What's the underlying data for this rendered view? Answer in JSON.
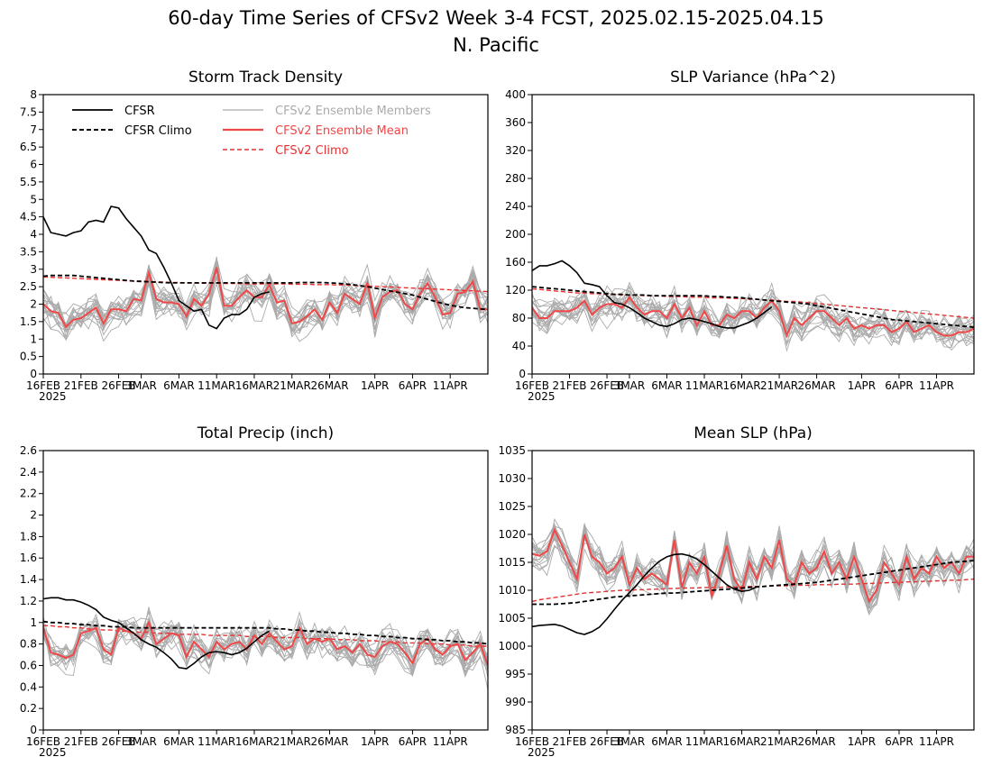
{
  "title": "60-day Time Series of CFSv2 Week 3-4 FCST, 2025.02.15-2025.04.15",
  "subtitle": "N. Pacific",
  "colors": {
    "cfsr": "#000000",
    "members": "#aaaaaa",
    "ens_mean": "#f04848",
    "cfsv2_climo": "#e83030"
  },
  "legend": {
    "cfsr": "CFSR",
    "cfsr_climo": "CFSR Climo",
    "members": "CFSv2 Ensemble Members",
    "ens_mean": "CFSv2 Ensemble Mean",
    "cfsv2_climo": "CFSv2 Climo"
  },
  "x_axis": {
    "ticks": [
      {
        "day": 0,
        "label": "16FEB"
      },
      {
        "day": 5,
        "label": "21FEB"
      },
      {
        "day": 10,
        "label": "26FEB"
      },
      {
        "day": 13,
        "label": "3MAR"
      },
      {
        "day": 18,
        "label": "6MAR"
      },
      {
        "day": 23,
        "label": "11MAR"
      },
      {
        "day": 28,
        "label": "16MAR"
      },
      {
        "day": 33,
        "label": "21MAR"
      },
      {
        "day": 38,
        "label": "26MAR"
      },
      {
        "day": 44,
        "label": "1APR"
      },
      {
        "day": 49,
        "label": "6APR"
      },
      {
        "day": 54,
        "label": "11APR"
      }
    ],
    "year_label": "2025"
  },
  "chart_data": [
    {
      "type": "line",
      "title": "Storm Track Density",
      "ylim": [
        0,
        8
      ],
      "yticks": [
        "0",
        "0.5",
        "1",
        "1.5",
        "2",
        "2.5",
        "3",
        "3.5",
        "4",
        "4.5",
        "5",
        "5.5",
        "6",
        "6.5",
        "7",
        "7.5",
        "8"
      ],
      "legend": true,
      "series": [
        {
          "name": "CFSR",
          "role": "cfsr",
          "values": [
            4.5,
            4.05,
            4.0,
            3.95,
            4.05,
            4.1,
            4.35,
            4.4,
            4.35,
            4.8,
            4.75,
            4.45,
            4.2,
            3.95,
            3.55,
            3.45,
            3.05,
            2.6,
            2.1,
            1.95,
            1.8,
            1.85,
            1.4,
            1.3,
            1.6,
            1.7,
            1.7,
            1.85,
            2.2,
            2.3,
            2.35
          ]
        },
        {
          "name": "CFSR Climo",
          "role": "cfsr_climo",
          "values": [
            2.8,
            2.82,
            2.82,
            2.82,
            2.82,
            2.8,
            2.78,
            2.76,
            2.74,
            2.72,
            2.7,
            2.68,
            2.66,
            2.65,
            2.64,
            2.63,
            2.62,
            2.61,
            2.61,
            2.61,
            2.61,
            2.61,
            2.61,
            2.61,
            2.61,
            2.61,
            2.61,
            2.61,
            2.61,
            2.61,
            2.61,
            2.61,
            2.61,
            2.61,
            2.62,
            2.62,
            2.62,
            2.62,
            2.61,
            2.6,
            2.58,
            2.56,
            2.53,
            2.5,
            2.46,
            2.42,
            2.38,
            2.34,
            2.3,
            2.26,
            2.2,
            2.14,
            2.08,
            2.02,
            1.97,
            1.93,
            1.9,
            1.88,
            1.86,
            1.85
          ]
        },
        {
          "name": "CFSv2 Ensemble Mean",
          "role": "ens_mean",
          "values": [
            2.0,
            1.8,
            1.75,
            1.35,
            1.55,
            1.6,
            1.75,
            1.9,
            1.45,
            1.85,
            1.85,
            1.8,
            2.15,
            2.1,
            2.9,
            2.15,
            2.05,
            2.05,
            2.0,
            1.65,
            2.15,
            1.95,
            2.3,
            3.05,
            1.95,
            1.95,
            2.2,
            2.4,
            2.2,
            2.2,
            2.55,
            2.05,
            2.1,
            1.45,
            1.5,
            1.65,
            1.85,
            1.55,
            2.05,
            1.75,
            2.3,
            2.15,
            2.0,
            2.6,
            1.6,
            2.2,
            2.35,
            2.4,
            2.0,
            1.85,
            2.3,
            2.6,
            2.2,
            1.7,
            1.75,
            2.3,
            2.35,
            2.65,
            1.85,
            1.85
          ]
        },
        {
          "name": "CFSv2 Climo",
          "role": "cfsv2_climo",
          "values": [
            2.78,
            2.77,
            2.76,
            2.75,
            2.74,
            2.73,
            2.72,
            2.71,
            2.7,
            2.69,
            2.68,
            2.67,
            2.66,
            2.66,
            2.65,
            2.64,
            2.63,
            2.62,
            2.62,
            2.61,
            2.61,
            2.6,
            2.6,
            2.6,
            2.59,
            2.59,
            2.59,
            2.58,
            2.58,
            2.58,
            2.58,
            2.58,
            2.58,
            2.57,
            2.57,
            2.57,
            2.56,
            2.56,
            2.56,
            2.55,
            2.55,
            2.54,
            2.53,
            2.52,
            2.51,
            2.5,
            2.49,
            2.48,
            2.47,
            2.46,
            2.45,
            2.44,
            2.43,
            2.42,
            2.41,
            2.4,
            2.39,
            2.38,
            2.37,
            2.36
          ]
        }
      ]
    },
    {
      "type": "line",
      "title": "SLP Variance (hPa^2)",
      "ylim": [
        0,
        400
      ],
      "yticks": [
        "0",
        "40",
        "80",
        "120",
        "160",
        "200",
        "240",
        "280",
        "320",
        "360",
        "400"
      ],
      "legend": false,
      "series": [
        {
          "name": "CFSR",
          "role": "cfsr",
          "values": [
            148,
            155,
            155,
            158,
            162,
            155,
            145,
            130,
            128,
            125,
            112,
            102,
            100,
            95,
            88,
            80,
            75,
            70,
            68,
            72,
            78,
            80,
            78,
            75,
            72,
            68,
            66,
            66,
            70,
            74,
            80,
            88,
            96
          ]
        },
        {
          "name": "CFSR Climo",
          "role": "cfsr_climo",
          "values": [
            125,
            124,
            123,
            122,
            121,
            120,
            119,
            118,
            117,
            116,
            115,
            114,
            114,
            113,
            113,
            113,
            112,
            112,
            112,
            112,
            112,
            112,
            112,
            112,
            111,
            111,
            110,
            110,
            109,
            108,
            107,
            106,
            105,
            104,
            103,
            102,
            101,
            100,
            98,
            96,
            94,
            92,
            90,
            88,
            86,
            84,
            82,
            80,
            78,
            77,
            76,
            75,
            74,
            73,
            72,
            71,
            70,
            69,
            68,
            67
          ]
        },
        {
          "name": "CFSv2 Ensemble Mean",
          "role": "ens_mean",
          "values": [
            95,
            80,
            80,
            90,
            90,
            90,
            95,
            105,
            85,
            95,
            100,
            100,
            95,
            110,
            95,
            85,
            90,
            90,
            80,
            100,
            80,
            95,
            70,
            90,
            70,
            70,
            85,
            80,
            90,
            90,
            80,
            95,
            105,
            90,
            55,
            80,
            70,
            80,
            90,
            90,
            80,
            70,
            80,
            65,
            70,
            65,
            70,
            70,
            60,
            65,
            75,
            60,
            65,
            70,
            60,
            55,
            55,
            60,
            60,
            65
          ]
        },
        {
          "name": "CFSv2 Climo",
          "role": "cfsv2_climo",
          "values": [
            122,
            121,
            120,
            119,
            118,
            117,
            116,
            116,
            115,
            115,
            114,
            114,
            113,
            113,
            113,
            112,
            112,
            112,
            111,
            111,
            111,
            110,
            110,
            110,
            109,
            109,
            109,
            108,
            108,
            107,
            107,
            106,
            106,
            105,
            104,
            104,
            103,
            102,
            101,
            100,
            99,
            98,
            97,
            96,
            95,
            94,
            93,
            92,
            91,
            90,
            89,
            88,
            87,
            86,
            85,
            84,
            83,
            82,
            81,
            80
          ]
        }
      ]
    },
    {
      "type": "line",
      "title": "Total Precip (inch)",
      "ylim": [
        0,
        2.6
      ],
      "yticks": [
        "0",
        "0.2",
        "0.4",
        "0.6",
        "0.8",
        "1",
        "1.2",
        "1.4",
        "1.6",
        "1.8",
        "2",
        "2.2",
        "2.4",
        "2.6"
      ],
      "legend": false,
      "series": [
        {
          "name": "CFSR",
          "role": "cfsr",
          "values": [
            1.22,
            1.23,
            1.23,
            1.21,
            1.21,
            1.19,
            1.16,
            1.12,
            1.05,
            1.02,
            1.0,
            0.95,
            0.9,
            0.84,
            0.8,
            0.77,
            0.72,
            0.66,
            0.58,
            0.57,
            0.62,
            0.68,
            0.72,
            0.73,
            0.72,
            0.7,
            0.72,
            0.76,
            0.82,
            0.88,
            0.92
          ]
        },
        {
          "name": "CFSR Climo",
          "role": "cfsr_climo",
          "values": [
            1.01,
            1.0,
            1.0,
            0.99,
            0.99,
            0.98,
            0.98,
            0.97,
            0.97,
            0.96,
            0.96,
            0.96,
            0.95,
            0.95,
            0.95,
            0.95,
            0.95,
            0.95,
            0.95,
            0.95,
            0.95,
            0.95,
            0.95,
            0.95,
            0.95,
            0.95,
            0.95,
            0.95,
            0.95,
            0.95,
            0.95,
            0.94,
            0.94,
            0.93,
            0.93,
            0.92,
            0.92,
            0.91,
            0.91,
            0.9,
            0.9,
            0.89,
            0.89,
            0.88,
            0.88,
            0.87,
            0.87,
            0.86,
            0.86,
            0.85,
            0.85,
            0.84,
            0.84,
            0.83,
            0.83,
            0.82,
            0.82,
            0.81,
            0.81,
            0.8
          ]
        },
        {
          "name": "CFSv2 Ensemble Mean",
          "role": "ens_mean",
          "values": [
            0.95,
            0.72,
            0.7,
            0.67,
            0.7,
            0.9,
            0.92,
            0.95,
            0.75,
            0.7,
            0.95,
            0.92,
            0.9,
            0.85,
            1.0,
            0.8,
            0.85,
            0.9,
            0.88,
            0.68,
            0.82,
            0.75,
            0.68,
            0.82,
            0.75,
            0.8,
            0.82,
            0.75,
            0.88,
            0.8,
            0.9,
            0.82,
            0.75,
            0.78,
            0.95,
            0.8,
            0.85,
            0.82,
            0.85,
            0.75,
            0.78,
            0.72,
            0.8,
            0.7,
            0.68,
            0.78,
            0.82,
            0.8,
            0.72,
            0.62,
            0.8,
            0.85,
            0.75,
            0.7,
            0.78,
            0.8,
            0.65,
            0.72,
            0.8,
            0.6
          ]
        },
        {
          "name": "CFSv2 Climo",
          "role": "cfsv2_climo",
          "values": [
            0.97,
            0.97,
            0.96,
            0.96,
            0.95,
            0.95,
            0.94,
            0.94,
            0.93,
            0.93,
            0.92,
            0.92,
            0.91,
            0.91,
            0.91,
            0.9,
            0.9,
            0.9,
            0.89,
            0.89,
            0.89,
            0.89,
            0.88,
            0.88,
            0.88,
            0.88,
            0.88,
            0.87,
            0.87,
            0.87,
            0.87,
            0.86,
            0.86,
            0.86,
            0.86,
            0.85,
            0.85,
            0.85,
            0.85,
            0.84,
            0.84,
            0.84,
            0.83,
            0.83,
            0.83,
            0.82,
            0.82,
            0.82,
            0.81,
            0.81,
            0.81,
            0.8,
            0.8,
            0.8,
            0.79,
            0.79,
            0.79,
            0.78,
            0.78,
            0.78
          ]
        }
      ]
    },
    {
      "type": "line",
      "title": "Mean SLP (hPa)",
      "ylim": [
        985,
        1035
      ],
      "yticks": [
        "985",
        "990",
        "995",
        "1000",
        "1005",
        "1010",
        "1015",
        "1020",
        "1025",
        "1030",
        "1035"
      ],
      "legend": false,
      "series": [
        {
          "name": "CFSR",
          "role": "cfsr",
          "values": [
            1003.5,
            1003.7,
            1003.8,
            1003.9,
            1003.6,
            1003.0,
            1002.4,
            1002.1,
            1002.6,
            1003.4,
            1004.9,
            1006.6,
            1008.2,
            1009.6,
            1011.0,
            1012.6,
            1014.0,
            1015.2,
            1016.0,
            1016.4,
            1016.5,
            1016.2,
            1015.6,
            1014.6,
            1013.4,
            1012.2,
            1011.0,
            1010.2,
            1009.8,
            1010.0,
            1010.6
          ]
        },
        {
          "name": "CFSR Climo",
          "role": "cfsr_climo",
          "values": [
            1007.5,
            1007.5,
            1007.5,
            1007.5,
            1007.6,
            1007.7,
            1007.8,
            1008.0,
            1008.2,
            1008.4,
            1008.6,
            1008.8,
            1008.9,
            1009.0,
            1009.1,
            1009.2,
            1009.3,
            1009.4,
            1009.5,
            1009.5,
            1009.6,
            1009.7,
            1009.8,
            1009.9,
            1010.0,
            1010.1,
            1010.2,
            1010.3,
            1010.4,
            1010.5,
            1010.6,
            1010.7,
            1010.8,
            1010.9,
            1011.0,
            1011.1,
            1011.2,
            1011.3,
            1011.4,
            1011.6,
            1011.8,
            1012.0,
            1012.2,
            1012.4,
            1012.6,
            1012.8,
            1013.0,
            1013.2,
            1013.4,
            1013.6,
            1013.8,
            1014.0,
            1014.2,
            1014.4,
            1014.6,
            1014.8,
            1015.0,
            1015.1,
            1015.2,
            1015.3
          ]
        },
        {
          "name": "CFSv2 Ensemble Mean",
          "role": "ens_mean",
          "values": [
            1016.5,
            1016.2,
            1017.0,
            1020.8,
            1018.0,
            1015.0,
            1012.0,
            1020.0,
            1016.0,
            1015.0,
            1013.0,
            1014.0,
            1016.0,
            1011.0,
            1014.0,
            1012.0,
            1013.0,
            1012.0,
            1011.0,
            1019.0,
            1010.5,
            1015.0,
            1013.0,
            1016.0,
            1009.0,
            1013.0,
            1018.0,
            1012.0,
            1010.0,
            1015.0,
            1012.0,
            1016.0,
            1014.0,
            1019.0,
            1012.0,
            1011.0,
            1015.0,
            1013.0,
            1014.0,
            1017.0,
            1013.0,
            1015.0,
            1012.0,
            1016.0,
            1012.0,
            1008.0,
            1010.0,
            1015.0,
            1013.0,
            1011.0,
            1016.0,
            1012.0,
            1014.0,
            1013.0,
            1016.0,
            1014.0,
            1015.0,
            1013.0,
            1016.0,
            1016.0
          ]
        },
        {
          "name": "CFSv2 Climo",
          "role": "cfsv2_climo",
          "values": [
            1008.0,
            1008.3,
            1008.5,
            1008.7,
            1008.9,
            1009.1,
            1009.3,
            1009.5,
            1009.6,
            1009.7,
            1009.8,
            1009.9,
            1010.0,
            1010.0,
            1010.1,
            1010.1,
            1010.2,
            1010.2,
            1010.3,
            1010.3,
            1010.4,
            1010.4,
            1010.4,
            1010.5,
            1010.5,
            1010.5,
            1010.6,
            1010.6,
            1010.6,
            1010.7,
            1010.7,
            1010.7,
            1010.8,
            1010.8,
            1010.8,
            1010.9,
            1010.9,
            1010.9,
            1011.0,
            1011.0,
            1011.0,
            1011.1,
            1011.1,
            1011.1,
            1011.2,
            1011.2,
            1011.3,
            1011.3,
            1011.4,
            1011.4,
            1011.5,
            1011.5,
            1011.6,
            1011.6,
            1011.7,
            1011.7,
            1011.8,
            1011.8,
            1011.9,
            1012.0
          ]
        }
      ]
    }
  ]
}
